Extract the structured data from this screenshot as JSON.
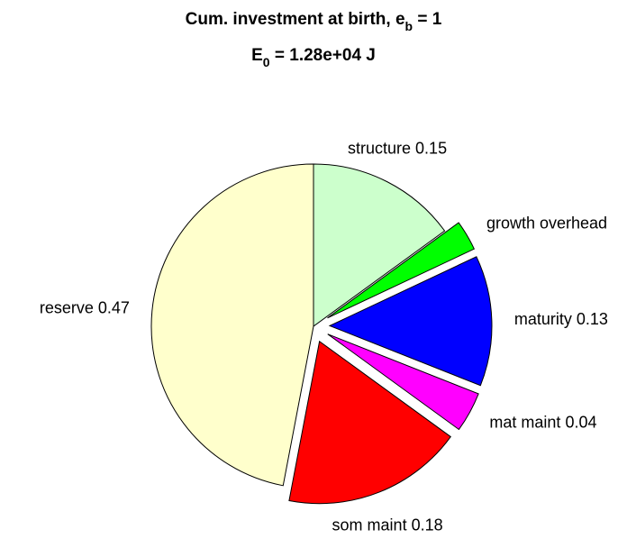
{
  "chart_data": {
    "type": "pie",
    "title": [
      "Cum. investment at birth, e",
      "b",
      " = 1"
    ],
    "subtitle": [
      "E",
      "0",
      " = 1.28e+04 J"
    ],
    "categories": [
      "structure",
      "growth overhead",
      "maturity",
      "mat maint",
      "som maint",
      "reserve"
    ],
    "values": [
      0.15,
      0.03,
      0.13,
      0.04,
      0.18,
      0.47
    ],
    "value_labels": [
      "0.15",
      null,
      "0.13",
      "0.04",
      "0.18",
      "0.47"
    ],
    "colors": [
      "#ccffcc",
      "#00ff00",
      "#0000ff",
      "#ff00ff",
      "#ff0000",
      "#ffffcc"
    ],
    "explode": [
      false,
      true,
      true,
      true,
      true,
      false
    ]
  }
}
